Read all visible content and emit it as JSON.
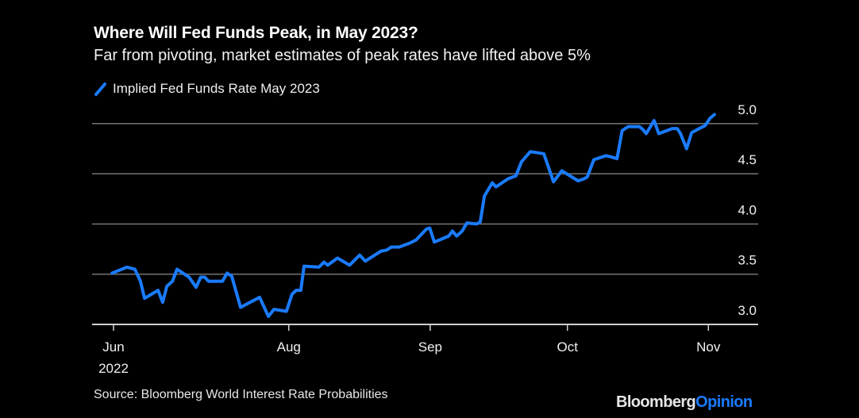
{
  "chart_data": {
    "type": "line",
    "title": "Where Will Fed Funds Peak, in May 2023?",
    "subtitle": "Far from pivoting, market estimates of peak rates have lifted above 5%",
    "legend": [
      "Implied Fed Funds Rate May 2023"
    ],
    "legend_placement": "top-left",
    "xlabel": "",
    "ylabel": "",
    "ylim": [
      3.0,
      5.1
    ],
    "yticks": [
      "3.0",
      "3.5",
      "4.0",
      "4.5",
      "5.0"
    ],
    "ytick_values": [
      3.0,
      3.5,
      4.0,
      4.5,
      5.0
    ],
    "xticks": [
      {
        "label": "Jun",
        "sublabel": "2022",
        "x": 0
      },
      {
        "label": "Aug",
        "sublabel": "",
        "x": 37.8
      },
      {
        "label": "Sep",
        "sublabel": "",
        "x": 68.3
      },
      {
        "label": "Oct",
        "sublabel": "",
        "x": 97.9
      },
      {
        "label": "Nov",
        "sublabel": "",
        "x": 128.3
      }
    ],
    "grid": true,
    "line_color": "#1a7bff",
    "series": [
      {
        "name": "Implied Fed Funds Rate May 2023",
        "x": [
          -0.3,
          2.9,
          4.6,
          5.8,
          6.7,
          9.6,
          10.6,
          11.5,
          12.7,
          13.7,
          16.3,
          17.8,
          18.8,
          19.7,
          20.5,
          23.5,
          24.5,
          25.5,
          27.4,
          31.5,
          33.4,
          34.6,
          37.3,
          38.5,
          39.4,
          40.4,
          41.1,
          44.3,
          45.4,
          46.2,
          48.3,
          50.9,
          53.1,
          54.3,
          57.7,
          58.9,
          59.9,
          61.6,
          63.9,
          65.2,
          67.5,
          68.2,
          69.2,
          72.3,
          73.1,
          74.0,
          75.2,
          76.2,
          78.3,
          79.1,
          80.0,
          81.7,
          82.5,
          85.1,
          86.8,
          88.0,
          89.9,
          92.8,
          94.9,
          96.7,
          98.8,
          100.2,
          101.5,
          102.2,
          103.6,
          106.2,
          107.2,
          108.6,
          109.7,
          111.0,
          113.4,
          114.2,
          114.9,
          116.6,
          117.6,
          120.5,
          121.6,
          122.3,
          123.6,
          124.7,
          126.7,
          127.6,
          128.6,
          129.6
        ],
        "values": [
          3.51,
          3.57,
          3.55,
          3.43,
          3.26,
          3.34,
          3.22,
          3.38,
          3.43,
          3.55,
          3.47,
          3.37,
          3.47,
          3.47,
          3.43,
          3.43,
          3.51,
          3.48,
          3.17,
          3.27,
          3.08,
          3.15,
          3.13,
          3.3,
          3.34,
          3.34,
          3.58,
          3.57,
          3.62,
          3.59,
          3.66,
          3.59,
          3.69,
          3.63,
          3.73,
          3.74,
          3.77,
          3.77,
          3.81,
          3.84,
          3.95,
          3.96,
          3.82,
          3.88,
          3.93,
          3.88,
          3.93,
          4.01,
          4.0,
          4.02,
          4.28,
          4.41,
          4.37,
          4.45,
          4.48,
          4.62,
          4.72,
          4.7,
          4.42,
          4.53,
          4.47,
          4.43,
          4.45,
          4.47,
          4.64,
          4.68,
          4.67,
          4.65,
          4.93,
          4.97,
          4.97,
          4.94,
          4.9,
          5.03,
          4.9,
          4.95,
          4.95,
          4.9,
          4.75,
          4.91,
          4.96,
          4.98,
          5.05,
          5.09
        ]
      }
    ]
  },
  "source": "Source: Bloomberg World Interest Rate Probabilities",
  "logo": {
    "brand": "Bloomberg",
    "section": "Opinion"
  }
}
